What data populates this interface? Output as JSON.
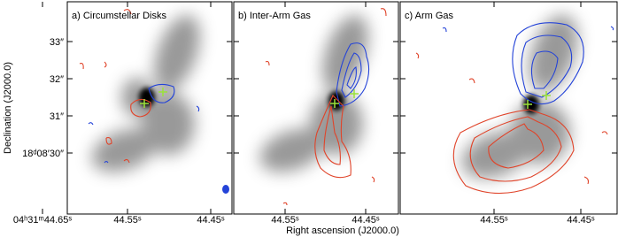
{
  "panels": [
    {
      "label": "a) Circumstellar Disks",
      "x_ticks": [
        "04ʰ31ᵐ44.65ˢ",
        "44.55ˢ",
        "44.45ˢ"
      ]
    },
    {
      "label": "b) Inter-Arm Gas",
      "x_ticks": [
        "44.55ˢ",
        "44.45ˢ"
      ]
    },
    {
      "label": "c) Arm Gas",
      "x_ticks": [
        "44.55ˢ",
        "44.45ˢ"
      ]
    }
  ],
  "y_axis": {
    "label": "Declination (J2000.0)",
    "ticks": [
      "33″",
      "32″",
      "31″",
      "18ᵈ08′30″"
    ]
  },
  "x_axis": {
    "label": "Right ascension (J2000.0)"
  }
}
